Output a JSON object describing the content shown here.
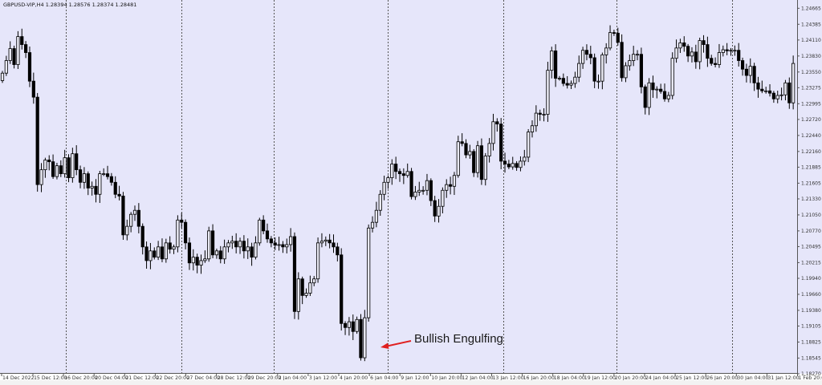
{
  "window": {
    "title": "GBPUSD-VIP,H4  1.28394 1.28576 1.28374 1.28481"
  },
  "annotation": {
    "text": "Bullish Engulfing",
    "color": "#e02020"
  },
  "colors": {
    "background": "#e6e6fa",
    "bull_body": "#e8e8f2",
    "bear_body": "#000000",
    "wick": "#000000",
    "grid_separator": "#555555"
  },
  "chart_data": {
    "type": "candlestick",
    "title": "GBPUSD-VIP,H4",
    "timeframe": "H4",
    "ylim": [
      1.1827,
      1.2481
    ],
    "y_axis_position": "right",
    "grid": false,
    "first_open": 1.234,
    "close": [
      1.2353,
      1.2375,
      1.2396,
      1.2368,
      1.2417,
      1.2403,
      1.2389,
      1.2339,
      1.2311,
      1.2158,
      1.2184,
      1.2201,
      1.2198,
      1.2172,
      1.2191,
      1.2177,
      1.2205,
      1.217,
      1.2212,
      1.2184,
      1.2162,
      1.2177,
      1.2152,
      1.2155,
      1.2141,
      1.2177,
      1.2177,
      1.2172,
      1.2162,
      1.2141,
      1.2138,
      1.207,
      1.2085,
      1.2106,
      1.2113,
      1.2085,
      1.2049,
      1.2025,
      1.2042,
      1.2031,
      1.2049,
      1.2028,
      1.2056,
      1.2045,
      1.2049,
      1.2096,
      1.2092,
      1.2056,
      1.2021,
      1.2031,
      1.2017,
      1.2025,
      1.2028,
      1.2077,
      1.2035,
      1.2042,
      1.2028,
      1.2049,
      1.2056,
      1.2059,
      1.2049,
      1.2059,
      1.2042,
      1.2049,
      1.2031,
      1.2056,
      1.2096,
      1.2077,
      1.2063,
      1.2056,
      1.2052,
      1.2053,
      1.2049,
      1.2053,
      1.2067,
      1.1936,
      1.1993,
      1.1964,
      1.1968,
      1.1986,
      1.1993,
      1.2056,
      1.2059,
      1.2061,
      1.2056,
      1.2049,
      1.2035,
      1.1915,
      1.1908,
      1.1918,
      1.1901,
      1.1922,
      1.1855,
      1.1925,
      1.2082,
      1.2092,
      1.2113,
      1.2141,
      1.2162,
      1.217,
      1.2194,
      1.2181,
      1.2177,
      1.2174,
      1.2181,
      1.2137,
      1.2145,
      1.2148,
      1.2148,
      1.2165,
      1.213,
      1.2103,
      1.212,
      1.2148,
      1.2158,
      1.2155,
      1.2174,
      1.2233,
      1.223,
      1.221,
      1.2216,
      1.2179,
      1.2226,
      1.2167,
      1.2208,
      1.223,
      1.2268,
      1.2264,
      1.2199,
      1.2194,
      1.2189,
      1.2195,
      1.2188,
      1.2199,
      1.2206,
      1.225,
      1.2261,
      1.2283,
      1.2281,
      1.2281,
      1.2358,
      1.2392,
      1.2344,
      1.2344,
      1.2335,
      1.2332,
      1.2335,
      1.2346,
      1.237,
      1.2393,
      1.2386,
      1.238,
      1.2339,
      1.2339,
      1.2385,
      1.2397,
      1.2424,
      1.2423,
      1.2407,
      1.2345,
      1.2366,
      1.2375,
      1.2386,
      1.2386,
      1.2329,
      1.2293,
      1.2336,
      1.2324,
      1.2325,
      1.2321,
      1.2308,
      1.2314,
      1.2379,
      1.2397,
      1.2406,
      1.24,
      1.2383,
      1.239,
      1.2373,
      1.241,
      1.2403,
      1.2379,
      1.237,
      1.2368,
      1.2389,
      1.2394,
      1.2392,
      1.2393,
      1.2393,
      1.2375,
      1.236,
      1.2349,
      1.2365,
      1.2336,
      1.2325,
      1.2322,
      1.2322,
      1.2318,
      1.2308,
      1.2314,
      1.2315,
      1.2336,
      1.2301,
      1.237
    ],
    "annotated_bar_index": 93,
    "y_ticks": [
      "1.24665",
      "1.24385",
      "1.24110",
      "1.23830",
      "1.23550",
      "1.23275",
      "1.22995",
      "1.22720",
      "1.22440",
      "1.22160",
      "1.21885",
      "1.21605",
      "1.21330",
      "1.21050",
      "1.20770",
      "1.20495",
      "1.20215",
      "1.19940",
      "1.19660",
      "1.19380",
      "1.19105",
      "1.18825",
      "1.18545",
      "1.18270"
    ],
    "x_ticks": [
      "14 Dec 2022",
      "15 Dec 12:00",
      "16 Dec 20:00",
      "20 Dec 04:00",
      "21 Dec 12:00",
      "22 Dec 20:00",
      "27 Dec 04:00",
      "28 Dec 12:00",
      "29 Dec 20:00",
      "2 Jan 04:00",
      "3 Jan 12:00",
      "4 Jan 20:00",
      "6 Jan 04:00",
      "9 Jan 12:00",
      "10 Jan 20:00",
      "12 Jan 04:00",
      "13 Jan 12:00",
      "16 Jan 20:00",
      "18 Jan 04:00",
      "19 Jan 12:00",
      "20 Jan 20:00",
      "24 Jan 04:00",
      "25 Jan 12:00",
      "26 Jan 20:00",
      "30 Jan 04:00",
      "31 Jan 12:00",
      "1 Feb 20:00"
    ]
  }
}
